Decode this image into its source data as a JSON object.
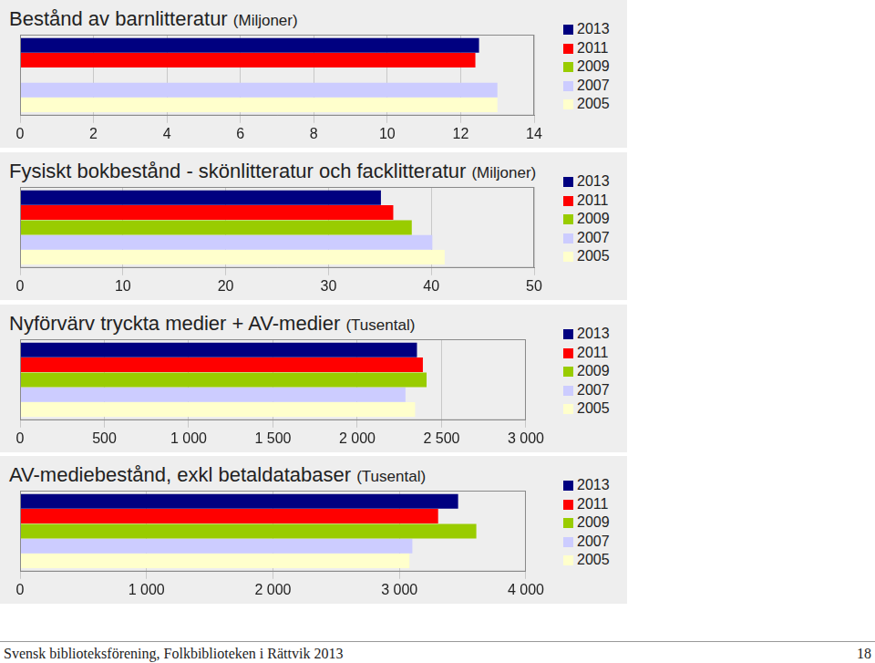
{
  "chart_data": [
    {
      "type": "bar",
      "orientation": "horizontal",
      "title": "Bestånd av barnlitteratur",
      "subtitle": "(Miljoner)",
      "categories": [
        null
      ],
      "grid": true,
      "legend": "right",
      "tick_labels": "x",
      "xlim": [
        0,
        14
      ],
      "xticks": [
        0,
        2,
        4,
        6,
        8,
        10,
        12,
        14
      ],
      "series": [
        {
          "name": "2013",
          "color": "#000080",
          "values": [
            12.5
          ]
        },
        {
          "name": "2011",
          "color": "#ff0000",
          "values": [
            12.4
          ]
        },
        {
          "name": "2009",
          "color": "#99cc00",
          "values": [
            null
          ]
        },
        {
          "name": "2007",
          "color": "#ccccff",
          "values": [
            13.0
          ]
        },
        {
          "name": "2005",
          "color": "#ffffcc",
          "values": [
            13.0
          ]
        }
      ]
    },
    {
      "type": "bar",
      "orientation": "horizontal",
      "title": "Fysiskt bokbestånd - skönlitteratur och facklitteratur",
      "subtitle": "(Miljoner)",
      "categories": [
        null
      ],
      "grid": true,
      "legend": "right",
      "tick_labels": "x",
      "xlim": [
        0,
        50
      ],
      "xticks": [
        0,
        10,
        20,
        30,
        40,
        50
      ],
      "series": [
        {
          "name": "2013",
          "color": "#000080",
          "values": [
            35.1
          ]
        },
        {
          "name": "2011",
          "color": "#ff0000",
          "values": [
            36.3
          ]
        },
        {
          "name": "2009",
          "color": "#99cc00",
          "values": [
            38.1
          ]
        },
        {
          "name": "2007",
          "color": "#ccccff",
          "values": [
            40.1
          ]
        },
        {
          "name": "2005",
          "color": "#ffffcc",
          "values": [
            41.3
          ]
        }
      ]
    },
    {
      "type": "bar",
      "orientation": "horizontal",
      "title": "Nyförvärv tryckta medier + AV-medier",
      "subtitle": "(Tusental)",
      "categories": [
        null
      ],
      "grid": true,
      "legend": "right",
      "tick_labels": "x",
      "xlim": [
        0,
        3000
      ],
      "xticks": [
        0,
        500,
        {
          "value": 1000,
          "label": "1 000"
        },
        {
          "value": 1500,
          "label": "1 500"
        },
        {
          "value": 2000,
          "label": "2 000"
        },
        {
          "value": 2500,
          "label": "2 500"
        },
        {
          "value": 3000,
          "label": "3 000"
        }
      ],
      "series": [
        {
          "name": "2013",
          "color": "#000080",
          "values": [
            2354
          ]
        },
        {
          "name": "2011",
          "color": "#ff0000",
          "values": [
            2389
          ]
        },
        {
          "name": "2009",
          "color": "#99cc00",
          "values": [
            2411
          ]
        },
        {
          "name": "2007",
          "color": "#ccccff",
          "values": [
            2286
          ]
        },
        {
          "name": "2005",
          "color": "#ffffcc",
          "values": [
            2343
          ]
        }
      ]
    },
    {
      "type": "bar",
      "orientation": "horizontal",
      "title": "AV-mediebestånd, exkl betaldatabaser",
      "subtitle": "(Tusental)",
      "categories": [
        null
      ],
      "grid": true,
      "legend": "right",
      "tick_labels": "x",
      "xlim": [
        0,
        4000
      ],
      "xticks": [
        0,
        {
          "value": 1000,
          "label": "1 000"
        },
        {
          "value": 2000,
          "label": "2 000"
        },
        {
          "value": 3000,
          "label": "3 000"
        },
        {
          "value": 4000,
          "label": "4 000"
        }
      ],
      "series": [
        {
          "name": "2013",
          "color": "#000080",
          "values": [
            3464
          ]
        },
        {
          "name": "2011",
          "color": "#ff0000",
          "values": [
            3306
          ]
        },
        {
          "name": "2009",
          "color": "#99cc00",
          "values": [
            3608
          ]
        },
        {
          "name": "2007",
          "color": "#ccccff",
          "values": [
            3102
          ]
        },
        {
          "name": "2005",
          "color": "#ffffcc",
          "values": [
            3079
          ]
        }
      ]
    }
  ],
  "footer": {
    "text": "Svensk biblioteksförening, Folkbiblioteken i Rättvik 2013",
    "page": 18
  }
}
